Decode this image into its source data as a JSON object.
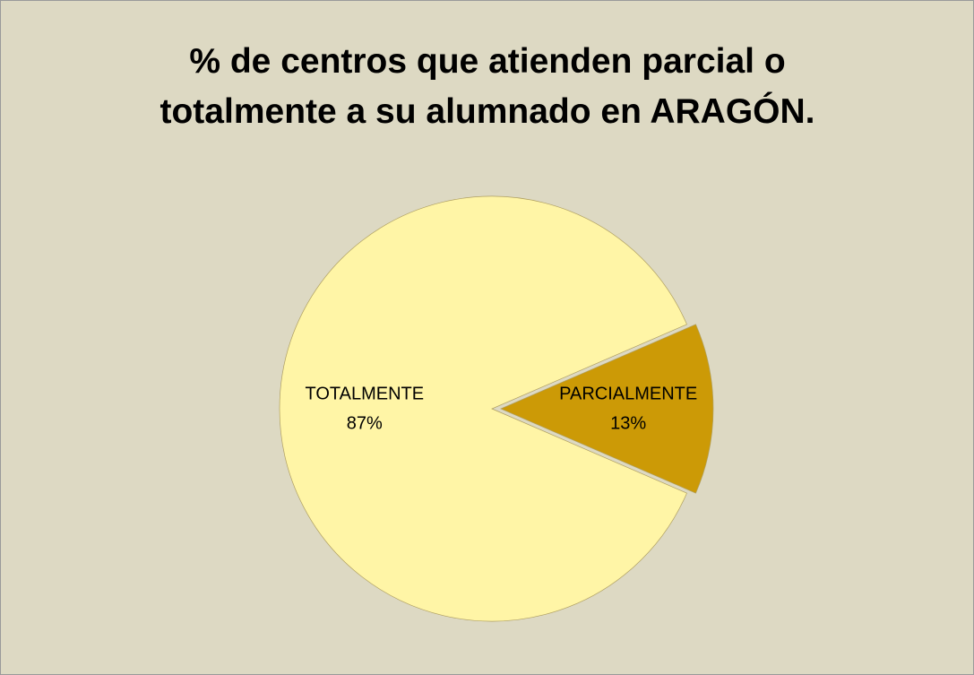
{
  "chart_data": {
    "type": "pie",
    "title": "% de centros que atienden parcial o totalmente a su alumnado en ARAGÓN.",
    "categories": [
      "TOTALMENTE",
      "PARCIALMENTE"
    ],
    "values": [
      87,
      13
    ],
    "value_labels": [
      "87%",
      "13%"
    ],
    "colors": [
      "#fff5a6",
      "#cc9a06"
    ]
  }
}
